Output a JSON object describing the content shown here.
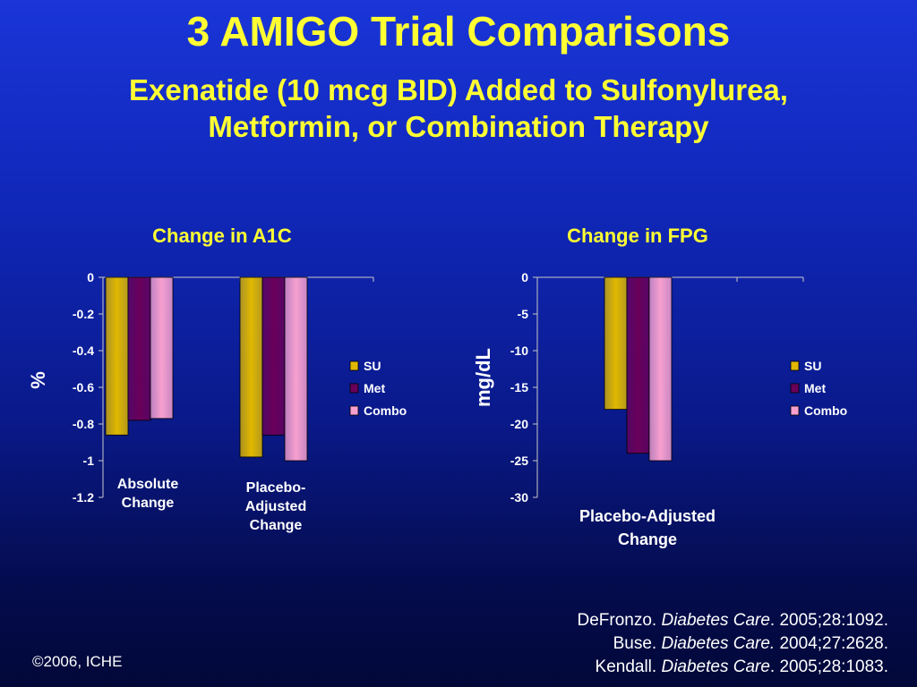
{
  "slide": {
    "title": "3 AMIGO Trial Comparisons",
    "subtitle_line1": "Exenatide (10 mcg BID) Added to Sulfonylurea,",
    "subtitle_line2": "Metformin, or Combination Therapy"
  },
  "colors": {
    "title": "#ffff33",
    "SU": "#e0b800",
    "Met": "#6a005a",
    "Combo": "#f7a0cf"
  },
  "chart_data": [
    {
      "type": "bar",
      "title": "Change in A1C",
      "ylabel": "%",
      "xlabel": "",
      "ylim": [
        -1.2,
        0
      ],
      "yticks": [
        "0",
        "-0.2",
        "-0.4",
        "-0.6",
        "-0.8",
        "-1",
        "-1.2"
      ],
      "categories": [
        "Absolute Change",
        "Placebo-Adjusted Change"
      ],
      "category_lines": [
        [
          "Absolute",
          "Change"
        ],
        [
          "Placebo-",
          "Adjusted",
          "Change"
        ]
      ],
      "series": [
        {
          "name": "SU",
          "values": [
            -0.86,
            -0.98
          ]
        },
        {
          "name": "Met",
          "values": [
            -0.78,
            -0.86
          ]
        },
        {
          "name": "Combo",
          "values": [
            -0.77,
            -1.0
          ]
        }
      ],
      "legend": "right",
      "grid": false
    },
    {
      "type": "bar",
      "title": "Change in FPG",
      "ylabel": "mg/dL",
      "xlabel": "",
      "ylim": [
        -30,
        0
      ],
      "yticks": [
        "0",
        "-5",
        "-10",
        "-15",
        "-20",
        "-25",
        "-30"
      ],
      "categories": [
        "Placebo-Adjusted Change"
      ],
      "category_lines": [
        [
          "Placebo-Adjusted",
          "Change"
        ]
      ],
      "series": [
        {
          "name": "SU",
          "values": [
            -18
          ]
        },
        {
          "name": "Met",
          "values": [
            -24
          ]
        },
        {
          "name": "Combo",
          "values": [
            -25
          ]
        }
      ],
      "legend": "right",
      "grid": false
    }
  ],
  "references": [
    {
      "author": "DeFronzo.",
      "journal": "Diabetes Care",
      "citation": ". 2005;28:1092."
    },
    {
      "author": "Buse.",
      "journal": "Diabetes Care.",
      "citation": " 2004;27:2628."
    },
    {
      "author": "Kendall.",
      "journal": "Diabetes Care",
      "citation": ". 2005;28:1083."
    }
  ],
  "copyright": "©2006, ICHE"
}
